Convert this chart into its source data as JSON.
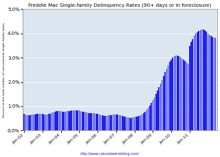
{
  "title": "Freddie Mac Single-family Delinquency Rates (90+ days or in foreclosure)",
  "ylabel": "Percent of the total number of conventional single-family loans",
  "watermark": "http://www.calculatedriskblog.com/",
  "bar_color": "#2020ee",
  "background_color": "#dce6f0",
  "ylim": [
    0.0,
    0.05
  ],
  "ytick_values": [
    0.0,
    0.01,
    0.02,
    0.03,
    0.04,
    0.05
  ],
  "xtick_labels": [
    "Jan-02",
    "Jan-03",
    "Jan-04",
    "Jan-05",
    "Jan-06",
    "Jan-07",
    "Jan-08",
    "Jan-09",
    "Jan-10",
    "Jan-11"
  ],
  "values": [
    0.0068,
    0.0065,
    0.0062,
    0.0062,
    0.0063,
    0.0065,
    0.0067,
    0.0067,
    0.0068,
    0.0068,
    0.0068,
    0.0068,
    0.0068,
    0.0066,
    0.0065,
    0.0066,
    0.0068,
    0.007,
    0.0073,
    0.0075,
    0.0077,
    0.0079,
    0.008,
    0.0081,
    0.008,
    0.0078,
    0.0078,
    0.0078,
    0.0079,
    0.008,
    0.0081,
    0.0082,
    0.0083,
    0.0084,
    0.0084,
    0.0084,
    0.0082,
    0.008,
    0.0078,
    0.0076,
    0.0074,
    0.0073,
    0.0072,
    0.0072,
    0.0072,
    0.0072,
    0.0071,
    0.007,
    0.0068,
    0.0065,
    0.0063,
    0.0062,
    0.0061,
    0.0061,
    0.0061,
    0.0062,
    0.0063,
    0.0064,
    0.0065,
    0.0066,
    0.0066,
    0.0065,
    0.0063,
    0.0062,
    0.006,
    0.0058,
    0.0056,
    0.0055,
    0.0054,
    0.0053,
    0.0053,
    0.0054,
    0.0055,
    0.0056,
    0.0058,
    0.006,
    0.0063,
    0.0067,
    0.0072,
    0.0078,
    0.0085,
    0.0094,
    0.0104,
    0.0114,
    0.0125,
    0.0137,
    0.015,
    0.0164,
    0.0178,
    0.0193,
    0.0208,
    0.0224,
    0.024,
    0.0256,
    0.027,
    0.0282,
    0.0292,
    0.03,
    0.0305,
    0.0308,
    0.0308,
    0.0306,
    0.0302,
    0.0298,
    0.0292,
    0.0286,
    0.028,
    0.0275,
    0.0348,
    0.0365,
    0.0378,
    0.039,
    0.0398,
    0.0405,
    0.041,
    0.0413,
    0.0415,
    0.0415,
    0.0412,
    0.0408,
    0.04,
    0.0395,
    0.039,
    0.0385,
    0.0382,
    0.0383
  ]
}
